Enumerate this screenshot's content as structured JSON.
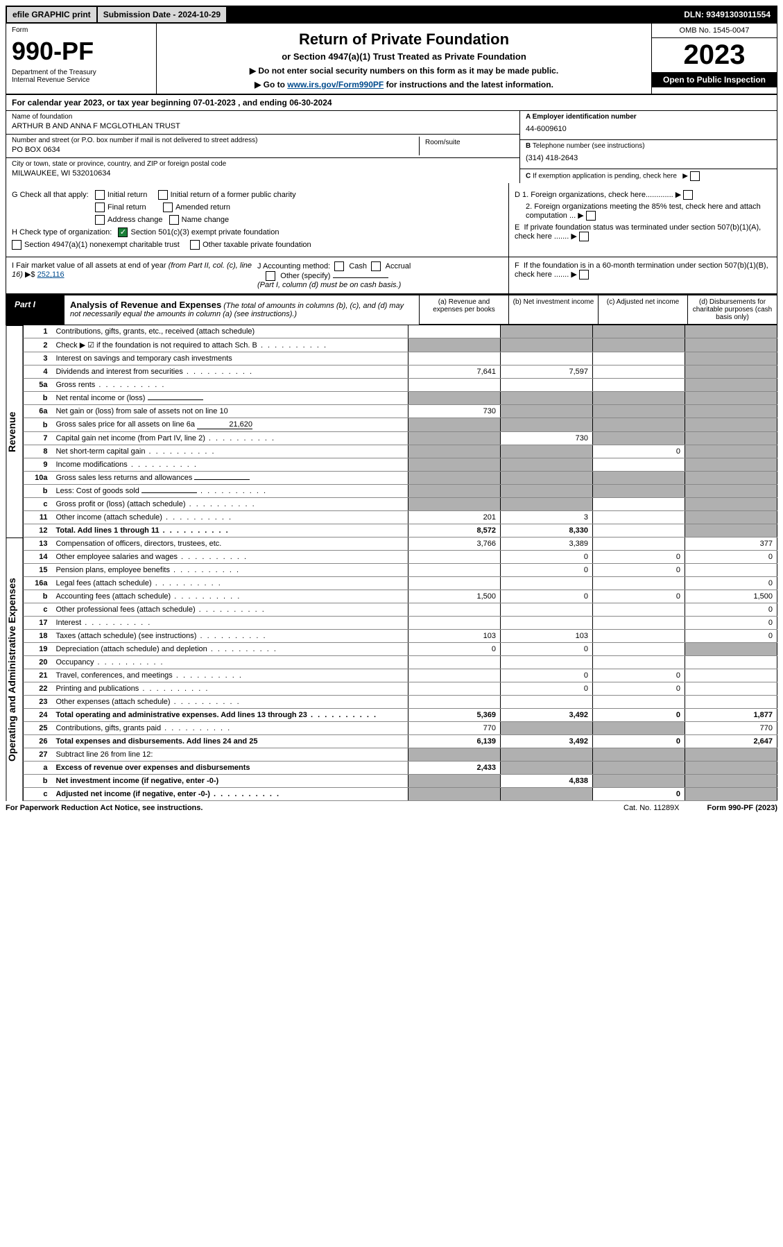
{
  "topbar": {
    "efile": "efile GRAPHIC print",
    "submission": "Submission Date - 2024-10-29",
    "dln": "DLN: 93491303011554"
  },
  "header": {
    "form_word": "Form",
    "form_no": "990-PF",
    "dept": "Department of the Treasury",
    "irs": "Internal Revenue Service",
    "title": "Return of Private Foundation",
    "subtitle": "or Section 4947(a)(1) Trust Treated as Private Foundation",
    "instr1": "▶ Do not enter social security numbers on this form as it may be made public.",
    "instr2_pre": "▶ Go to ",
    "instr2_link": "www.irs.gov/Form990PF",
    "instr2_post": " for instructions and the latest information.",
    "omb": "OMB No. 1545-0047",
    "year": "2023",
    "open": "Open to Public Inspection"
  },
  "cal_year": {
    "text_pre": "For calendar year 2023, or tax year beginning ",
    "begin": "07-01-2023",
    "text_mid": " , and ending ",
    "end": "06-30-2024"
  },
  "entity": {
    "name_label": "Name of foundation",
    "name": "ARTHUR B AND ANNA F MCGLOTHLAN TRUST",
    "addr_label": "Number and street (or P.O. box number if mail is not delivered to street address)",
    "addr": "PO BOX 0634",
    "room_label": "Room/suite",
    "city_label": "City or town, state or province, country, and ZIP or foreign postal code",
    "city": "MILWAUKEE, WI  532010634",
    "ein_label": "A Employer identification number",
    "ein": "44-6009610",
    "phone_label": "B Telephone number (see instructions)",
    "phone": "(314) 418-2643",
    "c_label": "C If exemption application is pending, check here"
  },
  "checks": {
    "g_label": "G Check all that apply:",
    "g_initial": "Initial return",
    "g_initial_former": "Initial return of a former public charity",
    "g_final": "Final return",
    "g_amended": "Amended return",
    "g_address": "Address change",
    "g_name": "Name change",
    "h_label": "H Check type of organization:",
    "h_501c3": "Section 501(c)(3) exempt private foundation",
    "h_4947": "Section 4947(a)(1) nonexempt charitable trust",
    "h_other": "Other taxable private foundation",
    "d1": "D 1. Foreign organizations, check here.............",
    "d2": "2. Foreign organizations meeting the 85% test, check here and attach computation ...",
    "e": "E  If private foundation status was terminated under section 507(b)(1)(A), check here .......",
    "i_label": "I Fair market value of all assets at end of year (from Part II, col. (c), line 16)",
    "i_val": "252,116",
    "j_label": "J Accounting method:",
    "j_cash": "Cash",
    "j_accrual": "Accrual",
    "j_other": "Other (specify)",
    "j_note": "(Part I, column (d) must be on cash basis.)",
    "f": "F  If the foundation is in a 60-month termination under section 507(b)(1)(B), check here ......."
  },
  "part": {
    "label": "Part I",
    "title": "Analysis of Revenue and Expenses",
    "note": "(The total of amounts in columns (b), (c), and (d) may not necessarily equal the amounts in column (a) (see instructions).)",
    "col_a": "(a)   Revenue and expenses per books",
    "col_b": "(b)   Net investment income",
    "col_c": "(c)   Adjusted net income",
    "col_d": "(d)  Disbursements for charitable purposes (cash basis only)"
  },
  "vert": {
    "revenue": "Revenue",
    "expenses": "Operating and Administrative Expenses"
  },
  "rows": [
    {
      "no": "1",
      "desc": "Contributions, gifts, grants, etc., received (attach schedule)",
      "a": "",
      "b": "shaded",
      "c": "shaded",
      "d": "shaded"
    },
    {
      "no": "2",
      "desc": "Check ▶ ☑ if the foundation is not required to attach Sch. B",
      "a": "shaded",
      "b": "shaded",
      "c": "shaded",
      "d": "shaded",
      "dots": true
    },
    {
      "no": "3",
      "desc": "Interest on savings and temporary cash investments",
      "a": "",
      "b": "",
      "c": "",
      "d": "shaded"
    },
    {
      "no": "4",
      "desc": "Dividends and interest from securities",
      "a": "7,641",
      "b": "7,597",
      "c": "",
      "d": "shaded",
      "dots": true
    },
    {
      "no": "5a",
      "desc": "Gross rents",
      "a": "",
      "b": "",
      "c": "",
      "d": "shaded",
      "dots": true
    },
    {
      "no": "b",
      "desc": "Net rental income or (loss)",
      "a": "shaded",
      "b": "shaded",
      "c": "shaded",
      "d": "shaded",
      "inline": ""
    },
    {
      "no": "6a",
      "desc": "Net gain or (loss) from sale of assets not on line 10",
      "a": "730",
      "b": "shaded",
      "c": "shaded",
      "d": "shaded"
    },
    {
      "no": "b",
      "desc": "Gross sales price for all assets on line 6a",
      "a": "shaded",
      "b": "shaded",
      "c": "shaded",
      "d": "shaded",
      "inline": "21,620"
    },
    {
      "no": "7",
      "desc": "Capital gain net income (from Part IV, line 2)",
      "a": "shaded",
      "b": "730",
      "c": "shaded",
      "d": "shaded",
      "dots": true
    },
    {
      "no": "8",
      "desc": "Net short-term capital gain",
      "a": "shaded",
      "b": "shaded",
      "c": "0",
      "d": "shaded",
      "dots": true
    },
    {
      "no": "9",
      "desc": "Income modifications",
      "a": "shaded",
      "b": "shaded",
      "c": "",
      "d": "shaded",
      "dots": true
    },
    {
      "no": "10a",
      "desc": "Gross sales less returns and allowances",
      "a": "shaded",
      "b": "shaded",
      "c": "shaded",
      "d": "shaded",
      "inline": ""
    },
    {
      "no": "b",
      "desc": "Less: Cost of goods sold",
      "a": "shaded",
      "b": "shaded",
      "c": "shaded",
      "d": "shaded",
      "inline": "",
      "dots": true
    },
    {
      "no": "c",
      "desc": "Gross profit or (loss) (attach schedule)",
      "a": "shaded",
      "b": "shaded",
      "c": "",
      "d": "shaded",
      "dots": true
    },
    {
      "no": "11",
      "desc": "Other income (attach schedule)",
      "a": "201",
      "b": "3",
      "c": "",
      "d": "shaded",
      "dots": true
    },
    {
      "no": "12",
      "desc": "Total. Add lines 1 through 11",
      "a": "8,572",
      "b": "8,330",
      "c": "",
      "d": "shaded",
      "bold": true,
      "dots": true,
      "bottom": true
    }
  ],
  "exp_rows": [
    {
      "no": "13",
      "desc": "Compensation of officers, directors, trustees, etc.",
      "a": "3,766",
      "b": "3,389",
      "c": "",
      "d": "377"
    },
    {
      "no": "14",
      "desc": "Other employee salaries and wages",
      "a": "",
      "b": "0",
      "c": "0",
      "d": "0",
      "dots": true
    },
    {
      "no": "15",
      "desc": "Pension plans, employee benefits",
      "a": "",
      "b": "0",
      "c": "0",
      "d": "",
      "dots": true
    },
    {
      "no": "16a",
      "desc": "Legal fees (attach schedule)",
      "a": "",
      "b": "",
      "c": "",
      "d": "0",
      "dots": true
    },
    {
      "no": "b",
      "desc": "Accounting fees (attach schedule)",
      "a": "1,500",
      "b": "0",
      "c": "0",
      "d": "1,500",
      "dots": true
    },
    {
      "no": "c",
      "desc": "Other professional fees (attach schedule)",
      "a": "",
      "b": "",
      "c": "",
      "d": "0",
      "dots": true
    },
    {
      "no": "17",
      "desc": "Interest",
      "a": "",
      "b": "",
      "c": "",
      "d": "0",
      "dots": true
    },
    {
      "no": "18",
      "desc": "Taxes (attach schedule) (see instructions)",
      "a": "103",
      "b": "103",
      "c": "",
      "d": "0",
      "dots": true
    },
    {
      "no": "19",
      "desc": "Depreciation (attach schedule) and depletion",
      "a": "0",
      "b": "0",
      "c": "",
      "d": "shaded",
      "dots": true
    },
    {
      "no": "20",
      "desc": "Occupancy",
      "a": "",
      "b": "",
      "c": "",
      "d": "",
      "dots": true
    },
    {
      "no": "21",
      "desc": "Travel, conferences, and meetings",
      "a": "",
      "b": "0",
      "c": "0",
      "d": "",
      "dots": true
    },
    {
      "no": "22",
      "desc": "Printing and publications",
      "a": "",
      "b": "0",
      "c": "0",
      "d": "",
      "dots": true
    },
    {
      "no": "23",
      "desc": "Other expenses (attach schedule)",
      "a": "",
      "b": "",
      "c": "",
      "d": "",
      "dots": true
    },
    {
      "no": "24",
      "desc": "Total operating and administrative expenses. Add lines 13 through 23",
      "a": "5,369",
      "b": "3,492",
      "c": "0",
      "d": "1,877",
      "bold": true,
      "dots": true
    },
    {
      "no": "25",
      "desc": "Contributions, gifts, grants paid",
      "a": "770",
      "b": "shaded",
      "c": "shaded",
      "d": "770",
      "dots": true
    },
    {
      "no": "26",
      "desc": "Total expenses and disbursements. Add lines 24 and 25",
      "a": "6,139",
      "b": "3,492",
      "c": "0",
      "d": "2,647",
      "bold": true,
      "bottom": true
    },
    {
      "no": "27",
      "desc": "Subtract line 26 from line 12:",
      "a": "shaded",
      "b": "shaded",
      "c": "shaded",
      "d": "shaded"
    },
    {
      "no": "a",
      "desc": "Excess of revenue over expenses and disbursements",
      "a": "2,433",
      "b": "shaded",
      "c": "shaded",
      "d": "shaded",
      "bold": true
    },
    {
      "no": "b",
      "desc": "Net investment income (if negative, enter -0-)",
      "a": "shaded",
      "b": "4,838",
      "c": "shaded",
      "d": "shaded",
      "bold": true
    },
    {
      "no": "c",
      "desc": "Adjusted net income (if negative, enter -0-)",
      "a": "shaded",
      "b": "shaded",
      "c": "0",
      "d": "shaded",
      "bold": true,
      "dots": true,
      "bottom": true
    }
  ],
  "footer": {
    "pra": "For Paperwork Reduction Act Notice, see instructions.",
    "cat": "Cat. No. 11289X",
    "form": "Form 990-PF (2023)"
  },
  "colors": {
    "link": "#004b8d",
    "check_green": "#1a7f37",
    "shade": "#b0b0b0"
  }
}
